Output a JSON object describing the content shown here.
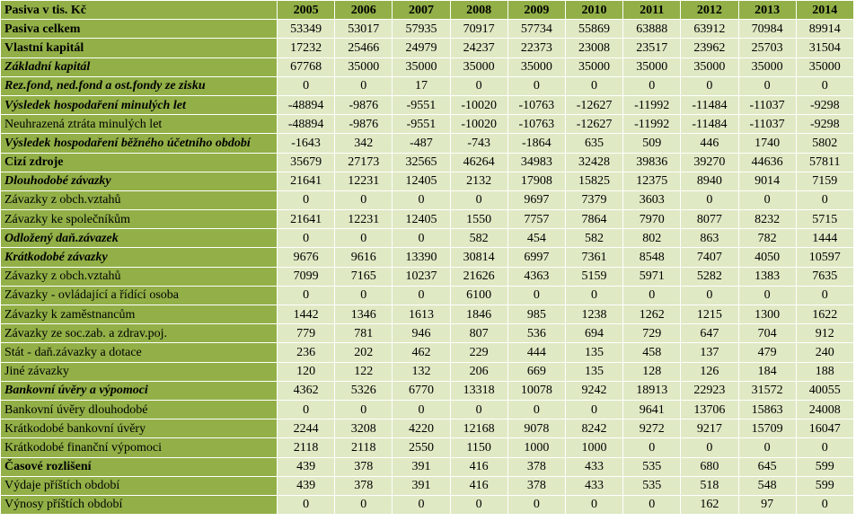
{
  "header": {
    "label": "Pasiva v tis. Kč",
    "years": [
      "2005",
      "2006",
      "2007",
      "2008",
      "2009",
      "2010",
      "2011",
      "2012",
      "2013",
      "2014"
    ]
  },
  "rows": [
    {
      "label": "Pasiva celkem",
      "style": "bold",
      "values": [
        "53349",
        "53017",
        "57935",
        "70917",
        "57734",
        "55869",
        "63888",
        "63912",
        "70984",
        "89914"
      ]
    },
    {
      "label": "Vlastní kapitál",
      "style": "bold",
      "values": [
        "17232",
        "25466",
        "24979",
        "24237",
        "22373",
        "23008",
        "23517",
        "23962",
        "25703",
        "31504"
      ]
    },
    {
      "label": "Základní kapitál",
      "style": "bi",
      "values": [
        "67768",
        "35000",
        "35000",
        "35000",
        "35000",
        "35000",
        "35000",
        "35000",
        "35000",
        "35000"
      ]
    },
    {
      "label": "Rez.fond, ned.fond a ost.fondy ze zisku",
      "style": "bi",
      "values": [
        "0",
        "0",
        "17",
        "0",
        "0",
        "0",
        "0",
        "0",
        "0",
        "0"
      ]
    },
    {
      "label": "Výsledek hospodaření minulých let",
      "style": "bi",
      "values": [
        "-48894",
        "-9876",
        "-9551",
        "-10020",
        "-10763",
        "-12627",
        "-11992",
        "-11484",
        "-11037",
        "-9298"
      ]
    },
    {
      "label": "Neuhrazená ztráta minulých let",
      "style": "normal",
      "values": [
        "-48894",
        "-9876",
        "-9551",
        "-10020",
        "-10763",
        "-12627",
        "-11992",
        "-11484",
        "-11037",
        "-9298"
      ]
    },
    {
      "label": "Výsledek hospodaření běžného účetního období",
      "style": "bi",
      "values": [
        "-1643",
        "342",
        "-487",
        "-743",
        "-1864",
        "635",
        "509",
        "446",
        "1740",
        "5802"
      ]
    },
    {
      "label": "Cizí zdroje",
      "style": "bold",
      "values": [
        "35679",
        "27173",
        "32565",
        "46264",
        "34983",
        "32428",
        "39836",
        "39270",
        "44636",
        "57811"
      ]
    },
    {
      "label": "Dlouhodobé závazky",
      "style": "bi",
      "values": [
        "21641",
        "12231",
        "12405",
        "2132",
        "17908",
        "15825",
        "12375",
        "8940",
        "9014",
        "7159"
      ]
    },
    {
      "label": "Závazky z obch.vztahů",
      "style": "normal",
      "values": [
        "0",
        "0",
        "0",
        "0",
        "9697",
        "7379",
        "3603",
        "0",
        "0",
        "0"
      ]
    },
    {
      "label": "Závazky ke společníkům",
      "style": "normal",
      "values": [
        "21641",
        "12231",
        "12405",
        "1550",
        "7757",
        "7864",
        "7970",
        "8077",
        "8232",
        "5715"
      ]
    },
    {
      "label": "Odložený daň.závazek",
      "style": "bi",
      "values": [
        "0",
        "0",
        "0",
        "582",
        "454",
        "582",
        "802",
        "863",
        "782",
        "1444"
      ]
    },
    {
      "label": "Krátkodobé závazky",
      "style": "bi",
      "values": [
        "9676",
        "9616",
        "13390",
        "30814",
        "6997",
        "7361",
        "8548",
        "7407",
        "4050",
        "10597"
      ]
    },
    {
      "label": "Závazky z obch.vztahů",
      "style": "normal",
      "values": [
        "7099",
        "7165",
        "10237",
        "21626",
        "4363",
        "5159",
        "5971",
        "5282",
        "1383",
        "7635"
      ]
    },
    {
      "label": "Závazky - ovládající a řídící osoba",
      "style": "normal",
      "values": [
        "0",
        "0",
        "0",
        "6100",
        "0",
        "0",
        "0",
        "0",
        "0",
        "0"
      ]
    },
    {
      "label": "Závazky k zaměstnancům",
      "style": "normal",
      "values": [
        "1442",
        "1346",
        "1613",
        "1846",
        "985",
        "1238",
        "1262",
        "1215",
        "1300",
        "1622"
      ]
    },
    {
      "label": "Závazky ze soc.zab. a zdrav.poj.",
      "style": "normal",
      "values": [
        "779",
        "781",
        "946",
        "807",
        "536",
        "694",
        "729",
        "647",
        "704",
        "912"
      ]
    },
    {
      "label": "Stát - daň.závazky a dotace",
      "style": "normal",
      "values": [
        "236",
        "202",
        "462",
        "229",
        "444",
        "135",
        "458",
        "137",
        "479",
        "240"
      ]
    },
    {
      "label": "Jiné závazky",
      "style": "normal",
      "values": [
        "120",
        "122",
        "132",
        "206",
        "669",
        "135",
        "128",
        "126",
        "184",
        "188"
      ]
    },
    {
      "label": "Bankovní úvěry a výpomoci",
      "style": "bi",
      "values": [
        "4362",
        "5326",
        "6770",
        "13318",
        "10078",
        "9242",
        "18913",
        "22923",
        "31572",
        "40055"
      ]
    },
    {
      "label": "Bankovní úvěry dlouhodobé",
      "style": "normal",
      "values": [
        "0",
        "0",
        "0",
        "0",
        "0",
        "0",
        "9641",
        "13706",
        "15863",
        "24008"
      ]
    },
    {
      "label": "Krátkodobé bankovní úvěry",
      "style": "normal",
      "values": [
        "2244",
        "3208",
        "4220",
        "12168",
        "9078",
        "8242",
        "9272",
        "9217",
        "15709",
        "16047"
      ]
    },
    {
      "label": "Krátkodobé finanční výpomoci",
      "style": "normal",
      "values": [
        "2118",
        "2118",
        "2550",
        "1150",
        "1000",
        "1000",
        "0",
        "0",
        "0",
        "0"
      ]
    },
    {
      "label": "Časové rozlišení",
      "style": "bold",
      "values": [
        "439",
        "378",
        "391",
        "416",
        "378",
        "433",
        "535",
        "680",
        "645",
        "599"
      ]
    },
    {
      "label": "Výdaje příštích období",
      "style": "normal",
      "values": [
        "439",
        "378",
        "391",
        "416",
        "378",
        "433",
        "535",
        "518",
        "548",
        "599"
      ]
    },
    {
      "label": "Výnosy příštích období",
      "style": "normal",
      "values": [
        "0",
        "0",
        "0",
        "0",
        "0",
        "0",
        "0",
        "162",
        "97",
        "0"
      ]
    }
  ]
}
